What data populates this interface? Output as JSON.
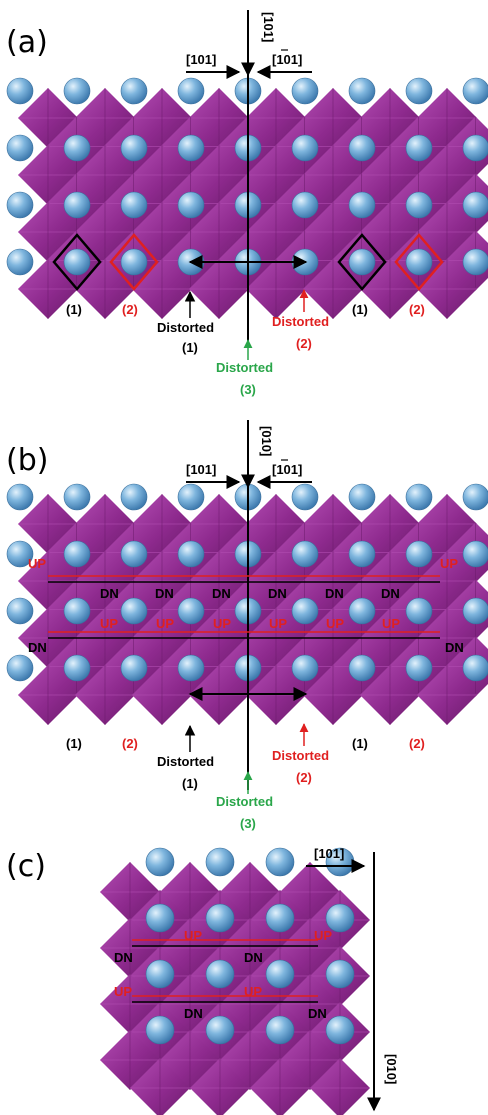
{
  "colors": {
    "octahedron": "#8e2a8e",
    "octahedron_light": "#b14cb1",
    "octahedron_dark": "#6a1a6a",
    "atom": "#6fa9d6",
    "atom_highlight": "#d6ecfa",
    "black": "#000000",
    "red": "#e02020",
    "green": "#2aa64a"
  },
  "panel_a": {
    "label": "(a)",
    "top_direction": "[101]",
    "left_direction": "[101]",
    "right_direction": "[101]",
    "right_direction_bar": "1",
    "site_labels": [
      "(1)",
      "(2)",
      "(1)",
      "(2)"
    ],
    "distorted_1": "Distorted",
    "distorted_1_num": "(1)",
    "distorted_2": "Distorted",
    "distorted_2_num": "(2)",
    "distorted_3": "Distorted",
    "distorted_3_num": "(3)"
  },
  "panel_b": {
    "label": "(b)",
    "top_direction": "[010]",
    "left_direction": "[101]",
    "right_direction": "[101]",
    "right_direction_bar": "1",
    "up": "UP",
    "dn": "DN",
    "site_labels": [
      "(1)",
      "(2)",
      "(1)",
      "(2)"
    ],
    "distorted_1": "Distorted",
    "distorted_1_num": "(1)",
    "distorted_2": "Distorted",
    "distorted_2_num": "(2)",
    "distorted_3": "Distorted",
    "distorted_3_num": "(3)"
  },
  "panel_c": {
    "label": "(c)",
    "top_direction": "[101]",
    "side_direction": "[010]",
    "up": "UP",
    "dn": "DN"
  }
}
